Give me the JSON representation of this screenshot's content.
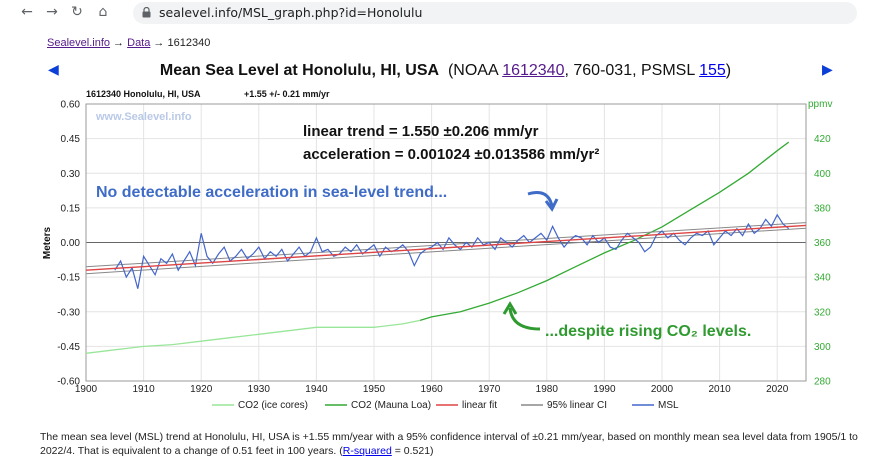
{
  "browser": {
    "url": "sealevel.info/MSL_graph.php?id=Honolulu",
    "back_icon": "back-arrow-icon",
    "forward_icon": "forward-arrow-icon",
    "reload_icon": "reload-icon",
    "home_icon": "home-icon"
  },
  "breadcrumb": {
    "home": "Sealevel.info",
    "sep1": " → ",
    "data": "Data",
    "sep2": " → ",
    "station": "1612340"
  },
  "title": {
    "main": "Mean Sea Level at Honolulu, HI, USA",
    "paren_open": "  (NOAA ",
    "noaa_id": "1612340",
    "middle": ", 760-031, PSMSL ",
    "psmsl_id": "155",
    "paren_close": ")"
  },
  "summary": {
    "text1": "The mean sea level (MSL) trend at Honolulu, HI, USA is +1.55 mm/year with a 95% confidence interval of ±0.21 mm/year, based on monthly mean sea level data from 1905/1 to 2022/4. That is equivalent to a change of 0.51 feet in 100 years. (",
    "rsq_link": "R-squared",
    "text2": " = 0.521)"
  },
  "colors": {
    "msl": "#4466cc",
    "co2_ice": "#99e699",
    "co2_mlo": "#33aa33",
    "linear_fit": "#dd4444",
    "ci": "#888888",
    "annot_blue": "#3f6cc7",
    "annot_green": "#2f9a2f",
    "right_axis": "#33aa33"
  },
  "chart_data": {
    "type": "line",
    "header_left": "1612340 Honolulu, HI, USA",
    "header_right": "+1.55 +/- 0.21 mm/yr",
    "watermark": "www.Sealevel.info",
    "ylabel": "Meters",
    "y2label": "ppmv",
    "xlim": [
      1900,
      2025
    ],
    "ylim": [
      -0.6,
      0.6
    ],
    "y2lim": [
      280,
      440
    ],
    "x_ticks": [
      1900,
      1910,
      1920,
      1930,
      1940,
      1950,
      1960,
      1970,
      1980,
      1990,
      2000,
      2010,
      2020
    ],
    "y_ticks": [
      "0.60",
      "0.45",
      "0.30",
      "0.15",
      "0.00",
      "-0.15",
      "-0.30",
      "-0.45",
      "-0.60"
    ],
    "y2_ticks": [
      420,
      400,
      380,
      360,
      340,
      320,
      300,
      280
    ],
    "grid": true,
    "legend_position": "bottom",
    "legend": [
      "CO2 (ice cores)",
      "CO2 (Mauna Loa)",
      "linear fit",
      "95% linear CI",
      "MSL"
    ],
    "annotations": {
      "trend": "linear trend = 1.550 ±0.206 mm/yr",
      "accel": "acceleration = 0.001024 ±0.013586 mm/yr²",
      "no_accel": "No detectable acceleration in sea-level trend...",
      "despite": "...despite rising CO₂ levels."
    },
    "series": [
      {
        "name": "MSL",
        "axis": "left",
        "x": [
          1905.0,
          1906.0,
          1907.0,
          1908.0,
          1909.0,
          1910.0,
          1911.0,
          1912.0,
          1913.0,
          1914.0,
          1915.0,
          1916.0,
          1917.0,
          1918.0,
          1919.0,
          1920.0,
          1921.0,
          1922.0,
          1923.0,
          1924.0,
          1925.0,
          1926.0,
          1927.0,
          1928.0,
          1929.0,
          1930.0,
          1931.0,
          1932.0,
          1933.0,
          1934.0,
          1935.0,
          1936.0,
          1937.0,
          1938.0,
          1939.0,
          1940.0,
          1941.0,
          1942.0,
          1943.0,
          1944.0,
          1945.0,
          1946.0,
          1947.0,
          1948.0,
          1949.0,
          1950.0,
          1951.0,
          1952.0,
          1953.0,
          1954.0,
          1955.0,
          1956.0,
          1957.0,
          1958.0,
          1959.0,
          1960.0,
          1961.0,
          1962.0,
          1963.0,
          1964.0,
          1965.0,
          1966.0,
          1967.0,
          1968.0,
          1969.0,
          1970.0,
          1971.0,
          1972.0,
          1973.0,
          1974.0,
          1975.0,
          1976.0,
          1977.0,
          1978.0,
          1979.0,
          1980.0,
          1981.0,
          1982.0,
          1983.0,
          1984.0,
          1985.0,
          1986.0,
          1987.0,
          1988.0,
          1989.0,
          1990.0,
          1991.0,
          1992.0,
          1993.0,
          1994.0,
          1995.0,
          1996.0,
          1997.0,
          1998.0,
          1999.0,
          2000.0,
          2001.0,
          2002.0,
          2003.0,
          2004.0,
          2005.0,
          2006.0,
          2007.0,
          2008.0,
          2009.0,
          2010.0,
          2011.0,
          2012.0,
          2013.0,
          2014.0,
          2015.0,
          2016.0,
          2017.0,
          2018.0,
          2019.0,
          2020.0,
          2021.0,
          2022.0
        ],
        "y": [
          -0.12,
          -0.08,
          -0.15,
          -0.11,
          -0.2,
          -0.06,
          -0.1,
          -0.14,
          -0.07,
          -0.09,
          -0.05,
          -0.12,
          -0.08,
          -0.04,
          -0.1,
          0.04,
          -0.06,
          -0.09,
          -0.05,
          -0.02,
          -0.08,
          -0.06,
          -0.03,
          -0.07,
          -0.05,
          -0.02,
          -0.07,
          -0.04,
          -0.06,
          -0.03,
          -0.08,
          -0.05,
          -0.02,
          -0.06,
          -0.04,
          0.02,
          -0.04,
          -0.03,
          -0.06,
          -0.05,
          -0.02,
          -0.04,
          -0.01,
          -0.05,
          -0.03,
          -0.01,
          -0.06,
          -0.02,
          -0.04,
          -0.03,
          -0.01,
          -0.04,
          -0.1,
          -0.05,
          -0.03,
          -0.02,
          0.0,
          -0.03,
          0.02,
          -0.01,
          -0.03,
          0.0,
          -0.02,
          0.02,
          -0.01,
          0.0,
          -0.03,
          0.02,
          0.0,
          -0.02,
          0.01,
          0.03,
          0.0,
          0.02,
          0.04,
          0.01,
          0.07,
          0.02,
          -0.02,
          0.01,
          0.03,
          0.02,
          -0.01,
          0.03,
          0.0,
          0.02,
          -0.02,
          -0.03,
          0.01,
          0.04,
          0.02,
          0.0,
          -0.04,
          -0.02,
          0.03,
          0.05,
          0.02,
          0.04,
          0.01,
          -0.01,
          0.02,
          0.04,
          0.03,
          0.05,
          -0.01,
          0.02,
          0.05,
          0.03,
          0.06,
          0.03,
          0.08,
          0.04,
          0.06,
          0.1,
          0.07,
          0.12,
          0.08,
          0.06
        ]
      },
      {
        "name": "CO2 (ice cores)",
        "axis": "right",
        "x": [
          1900,
          1905,
          1910,
          1915,
          1920,
          1925,
          1930,
          1935,
          1940,
          1945,
          1950,
          1955,
          1958
        ],
        "y": [
          296,
          298,
          300,
          301,
          303,
          305,
          307,
          309,
          311,
          311,
          311,
          313,
          315
        ]
      },
      {
        "name": "CO2 (Mauna Loa)",
        "axis": "right",
        "x": [
          1958,
          1960,
          1965,
          1970,
          1975,
          1980,
          1985,
          1990,
          1995,
          2000,
          2005,
          2010,
          2015,
          2020,
          2022
        ],
        "y": [
          315,
          317,
          320,
          325,
          331,
          338,
          346,
          354,
          361,
          369,
          379,
          389,
          400,
          413,
          418
        ]
      },
      {
        "name": "linear fit",
        "axis": "left",
        "x": [
          1900,
          2025
        ],
        "y": [
          -0.12,
          0.074
        ]
      },
      {
        "name": "95% linear CI",
        "axis": "left",
        "x_upper": [
          1900,
          2025
        ],
        "y_upper": [
          -0.105,
          0.086
        ],
        "x_lower": [
          1900,
          2025
        ],
        "y_lower": [
          -0.135,
          0.062
        ]
      }
    ]
  }
}
